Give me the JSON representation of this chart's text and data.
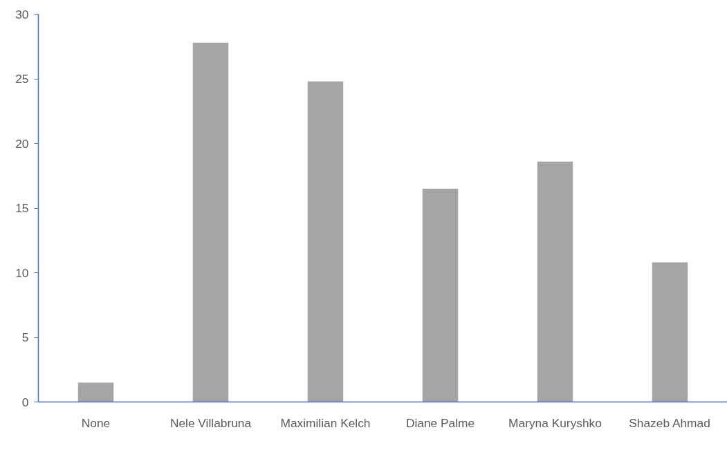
{
  "chart_data": {
    "type": "bar",
    "categories": [
      "None",
      "Nele Villabruna",
      "Maximilian Kelch",
      "Diane Palme",
      "Maryna Kuryshko",
      "Shazeb Ahmad"
    ],
    "values": [
      1.5,
      27.8,
      24.8,
      16.5,
      18.6,
      10.8
    ],
    "color": "#a5a5a5",
    "ylim": [
      0,
      30
    ],
    "yticks": [
      0,
      5,
      10,
      15,
      20,
      25,
      30
    ],
    "grid": false
  }
}
